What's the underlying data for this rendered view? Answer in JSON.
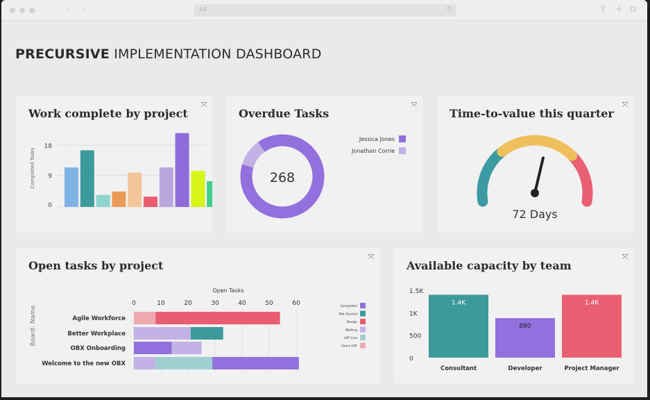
{
  "browser": {
    "url_placeholder": "AA",
    "nav_back": "‹",
    "nav_forward": "›",
    "reload_icon": "↻",
    "share_icon": "⇪",
    "new_tab_icon": "+",
    "tabs_icon": "⧉"
  },
  "dashboard": {
    "title_bold": "PRECURSIVE",
    "title_rest": " IMPLEMENTATION DASHBOARD",
    "expand_icon": "⤧"
  },
  "work_complete": {
    "title": "Work complete by project",
    "chart_data": {
      "type": "bar",
      "ylabel": "Completed Tasks",
      "yticks": [
        "18",
        "9",
        "0"
      ],
      "ylim": [
        0,
        22
      ],
      "values": [
        11.5,
        16.5,
        3.5,
        4.5,
        10,
        3,
        11.5,
        21.5,
        10.5,
        7.5
      ],
      "colors": [
        "#7fb3e6",
        "#3d9a9b",
        "#8fd3cc",
        "#eb9a57",
        "#f3c59b",
        "#e85d6f",
        "#b9a6db",
        "#8f6bd9",
        "#d8f51a",
        "#3fcf88"
      ]
    }
  },
  "overdue": {
    "title": "Overdue Tasks",
    "total": "268",
    "chart_data": {
      "type": "pie",
      "series": [
        {
          "name": "Jessica Jones",
          "value": 240,
          "color": "#9270dd"
        },
        {
          "name": "Jonathan Corrie",
          "value": 28,
          "color": "#c2b2e6"
        }
      ]
    },
    "legend": [
      {
        "label": "Jessica Jones",
        "color": "#9270dd"
      },
      {
        "label": "Jonathan Corrie",
        "color": "#c2b2e6"
      }
    ]
  },
  "time_to_value": {
    "title": "Time-to-value this quarter",
    "value_label": "72 Days",
    "gauge_fraction": 0.58,
    "colors": {
      "low": "#3c9aa3",
      "mid": "#f0bf5d",
      "high": "#ea6073",
      "needle": "#222222"
    }
  },
  "open_tasks": {
    "title": "Open tasks by project",
    "chart_data": {
      "type": "bar",
      "orientation": "horizontal",
      "stacked": true,
      "title": "Open Tasks",
      "ylabel": "Board: Name",
      "xticks": [
        "0",
        "10",
        "20",
        "30",
        "40",
        "50",
        "60"
      ],
      "xlim": [
        0,
        62
      ],
      "categories": [
        "Agile Workforce",
        "Better Workplace",
        "OBX Onboarding",
        "Welcome to the new OBX"
      ],
      "series": [
        {
          "name": "Completed",
          "color": "#9270dd",
          "values": [
            0,
            0,
            14,
            32
          ]
        },
        {
          "name": "Not Started",
          "color": "#3d9a9b",
          "values": [
            0,
            12,
            0,
            0
          ]
        },
        {
          "name": "Design",
          "color": "#e85d6f",
          "values": [
            46,
            0,
            0,
            0
          ]
        },
        {
          "name": "Waiting",
          "color": "#c2b2e6",
          "values": [
            0,
            21,
            11,
            8
          ]
        },
        {
          "name": "UAT Live",
          "color": "#9fcfcf",
          "values": [
            0,
            0,
            0,
            21
          ]
        },
        {
          "name": "Client UAT",
          "color": "#f0a8b0",
          "values": [
            8,
            0,
            0,
            0
          ]
        }
      ]
    }
  },
  "capacity": {
    "title": "Available capacity by team",
    "chart_data": {
      "type": "bar",
      "yticks": [
        "1.5K",
        "1K",
        "500",
        "0"
      ],
      "ylim": [
        0,
        1500
      ],
      "categories": [
        "Consultant",
        "Developer",
        "Project Manager"
      ],
      "values": [
        1400,
        880,
        1400
      ],
      "value_labels": [
        "1.4K",
        "880",
        "1.4K"
      ],
      "colors": [
        "#3d9a9b",
        "#9270dd",
        "#ea6073"
      ]
    }
  }
}
